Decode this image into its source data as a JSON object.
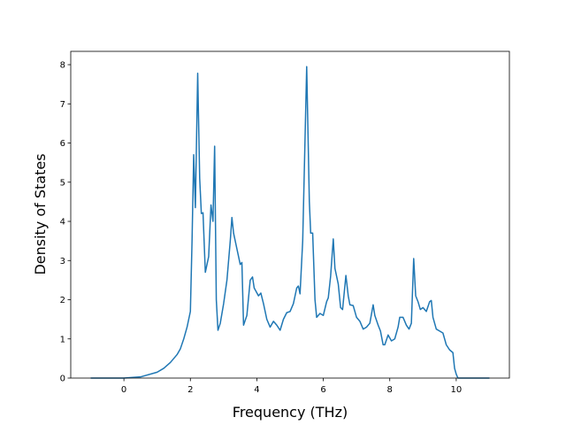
{
  "chart_data": {
    "type": "line",
    "x_label": "Frequency (THz)",
    "y_label": "Density of States",
    "x": [
      -1,
      0,
      0.5,
      1.0,
      1.2,
      1.4,
      1.6,
      1.7,
      1.8,
      1.9,
      2.0,
      2.05,
      2.1,
      2.15,
      2.22,
      2.28,
      2.33,
      2.38,
      2.45,
      2.55,
      2.62,
      2.68,
      2.73,
      2.78,
      2.83,
      2.9,
      3.0,
      3.1,
      3.2,
      3.25,
      3.3,
      3.4,
      3.5,
      3.55,
      3.6,
      3.7,
      3.8,
      3.87,
      3.92,
      4.05,
      4.12,
      4.2,
      4.3,
      4.4,
      4.5,
      4.6,
      4.7,
      4.8,
      4.9,
      5.0,
      5.1,
      5.2,
      5.25,
      5.3,
      5.38,
      5.5,
      5.58,
      5.62,
      5.68,
      5.75,
      5.8,
      5.9,
      6.0,
      6.1,
      6.15,
      6.22,
      6.3,
      6.35,
      6.45,
      6.52,
      6.58,
      6.68,
      6.75,
      6.8,
      6.9,
      7.0,
      7.1,
      7.2,
      7.3,
      7.4,
      7.5,
      7.55,
      7.65,
      7.72,
      7.8,
      7.85,
      7.95,
      8.05,
      8.15,
      8.25,
      8.3,
      8.4,
      8.5,
      8.58,
      8.65,
      8.72,
      8.78,
      8.85,
      8.92,
      9.0,
      9.1,
      9.2,
      9.25,
      9.3,
      9.4,
      9.5,
      9.6,
      9.7,
      9.8,
      9.9,
      9.95,
      10.0,
      10.05,
      11.0
    ],
    "values": [
      0,
      0,
      0.03,
      0.15,
      0.25,
      0.4,
      0.6,
      0.75,
      1.0,
      1.3,
      1.7,
      3.5,
      5.7,
      4.35,
      7.78,
      5.1,
      4.2,
      4.22,
      2.7,
      3.1,
      4.42,
      4.0,
      5.92,
      2.0,
      1.22,
      1.4,
      1.9,
      2.5,
      3.5,
      4.1,
      3.7,
      3.3,
      2.9,
      2.95,
      1.35,
      1.6,
      2.5,
      2.58,
      2.3,
      2.1,
      2.17,
      1.9,
      1.5,
      1.3,
      1.45,
      1.35,
      1.22,
      1.5,
      1.67,
      1.7,
      1.9,
      2.3,
      2.35,
      2.15,
      3.5,
      7.95,
      4.5,
      3.7,
      3.7,
      2.0,
      1.55,
      1.65,
      1.6,
      1.95,
      2.05,
      2.6,
      3.55,
      2.8,
      2.4,
      1.8,
      1.75,
      2.62,
      2.1,
      1.87,
      1.85,
      1.55,
      1.45,
      1.25,
      1.3,
      1.4,
      1.87,
      1.6,
      1.35,
      1.2,
      0.85,
      0.85,
      1.1,
      0.95,
      1.0,
      1.3,
      1.55,
      1.55,
      1.35,
      1.25,
      1.4,
      3.05,
      2.1,
      1.95,
      1.75,
      1.8,
      1.7,
      1.95,
      1.98,
      1.55,
      1.25,
      1.2,
      1.15,
      0.85,
      0.72,
      0.65,
      0.25,
      0.1,
      0,
      0
    ],
    "color": "#1f77b4",
    "xlim": [
      -1.6,
      11.6
    ],
    "ylim": [
      0,
      8.34
    ],
    "xticks": [
      0,
      2,
      4,
      6,
      8,
      10
    ],
    "yticks": [
      0,
      1,
      2,
      3,
      4,
      5,
      6,
      7,
      8
    ]
  }
}
